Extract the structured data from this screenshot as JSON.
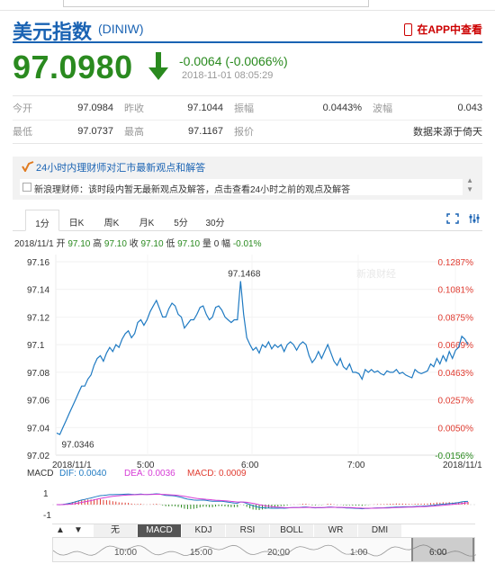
{
  "header": {
    "title": "美元指数",
    "code": "(DINIW)",
    "app_link": "在APP中查看"
  },
  "quote": {
    "price": "97.0980",
    "change": "-0.0064 (-0.0066%)",
    "time": "2018-11-01 08:05:29"
  },
  "stats": {
    "open_label": "今开",
    "open": "97.0984",
    "prev_label": "昨收",
    "prev": "97.1044",
    "amp_label": "振幅",
    "amp": "0.0443%",
    "wave_label": "波幅",
    "wave": "0.043",
    "low_label": "最低",
    "low": "97.0737",
    "high_label": "最高",
    "high": "97.1167",
    "bid_label": "报价",
    "source": "数据来源于倚天"
  },
  "notice": {
    "title": "24小时内理财师对汇市最新观点和解答",
    "message": "新浪理财师：该时段内暂无最新观点及解答，点击查看24小时之前的观点及解答"
  },
  "tabs": [
    "1分",
    "日K",
    "周K",
    "月K",
    "5分",
    "30分"
  ],
  "ohlc": {
    "date": "2018/11/1",
    "open_label": "开",
    "open": "97.10",
    "high_label": "高",
    "high": "97.10",
    "close_label": "收",
    "close": "97.10",
    "low_label": "低",
    "low": "97.10",
    "vol_label": "量",
    "vol": "0",
    "pct_label": "幅",
    "pct": "-0.01%"
  },
  "indicator_tabs": [
    "无",
    "MACD",
    "KDJ",
    "RSI",
    "BOLL",
    "WR",
    "DMI"
  ],
  "nav_arrows": [
    "▲",
    "▼"
  ],
  "overview_times": [
    "10:00",
    "15:00",
    "20:00",
    "1:00",
    "6:00"
  ],
  "watermark": "新浪财经",
  "colors": {
    "brand": "#1a63b3",
    "down": "#2a8a1f",
    "up": "#e03c31",
    "line": "#1f7ac2"
  },
  "chart_data": {
    "type": "line",
    "title": "",
    "y_ticks": [
      "97.16",
      "97.14",
      "97.12",
      "97.1",
      "97.08",
      "97.06",
      "97.04",
      "97.02"
    ],
    "y_ticks_values": [
      97.16,
      97.14,
      97.12,
      97.1,
      97.08,
      97.06,
      97.04,
      97.02
    ],
    "pct_ticks": [
      "0.1287%",
      "0.1081%",
      "0.0875%",
      "0.0669%",
      "0.0463%",
      "0.0257%",
      "0.0050%",
      "-0.0156%"
    ],
    "x_ticks": [
      "2018/11/1",
      "5:00",
      "6:00",
      "7:00",
      "2018/11/1"
    ],
    "ylim": [
      97.02,
      97.16
    ],
    "annotations": [
      {
        "label": "97.1468",
        "value": 97.1468
      },
      {
        "label": "97.0346",
        "value": 97.0346
      }
    ],
    "values": [
      97.036,
      97.035,
      97.04,
      97.045,
      97.05,
      97.055,
      97.06,
      97.065,
      97.07,
      97.07,
      97.075,
      97.078,
      97.085,
      97.09,
      97.092,
      97.088,
      97.094,
      97.098,
      97.095,
      97.1,
      97.098,
      97.104,
      97.108,
      97.11,
      97.105,
      97.108,
      97.116,
      97.118,
      97.114,
      97.118,
      97.124,
      97.128,
      97.132,
      97.126,
      97.12,
      97.12,
      97.126,
      97.13,
      97.128,
      97.122,
      97.12,
      97.112,
      97.115,
      97.118,
      97.118,
      97.122,
      97.127,
      97.128,
      97.122,
      97.118,
      97.12,
      97.127,
      97.128,
      97.125,
      97.12,
      97.118,
      97.116,
      97.118,
      97.118,
      97.146,
      97.122,
      97.105,
      97.1,
      97.096,
      97.098,
      97.094,
      97.1,
      97.098,
      97.102,
      97.097,
      97.1,
      97.098,
      97.1,
      97.095,
      97.1,
      97.102,
      97.1,
      97.096,
      97.1,
      97.102,
      97.1,
      97.092,
      97.087,
      97.09,
      97.095,
      97.09,
      97.095,
      97.1,
      97.094,
      97.088,
      97.085,
      97.09,
      97.084,
      97.082,
      97.086,
      97.08,
      97.08,
      97.079,
      97.075,
      97.082,
      97.08,
      97.082,
      97.08,
      97.081,
      97.079,
      97.078,
      97.081,
      97.08,
      97.08,
      97.082,
      97.079,
      97.08,
      97.078,
      97.077,
      97.076,
      97.082,
      97.08,
      97.079,
      97.08,
      97.081,
      97.086,
      97.084,
      97.09,
      97.086,
      97.092,
      97.088,
      97.095,
      97.09,
      97.096,
      97.098,
      97.106,
      97.104,
      97.1
    ]
  }
}
